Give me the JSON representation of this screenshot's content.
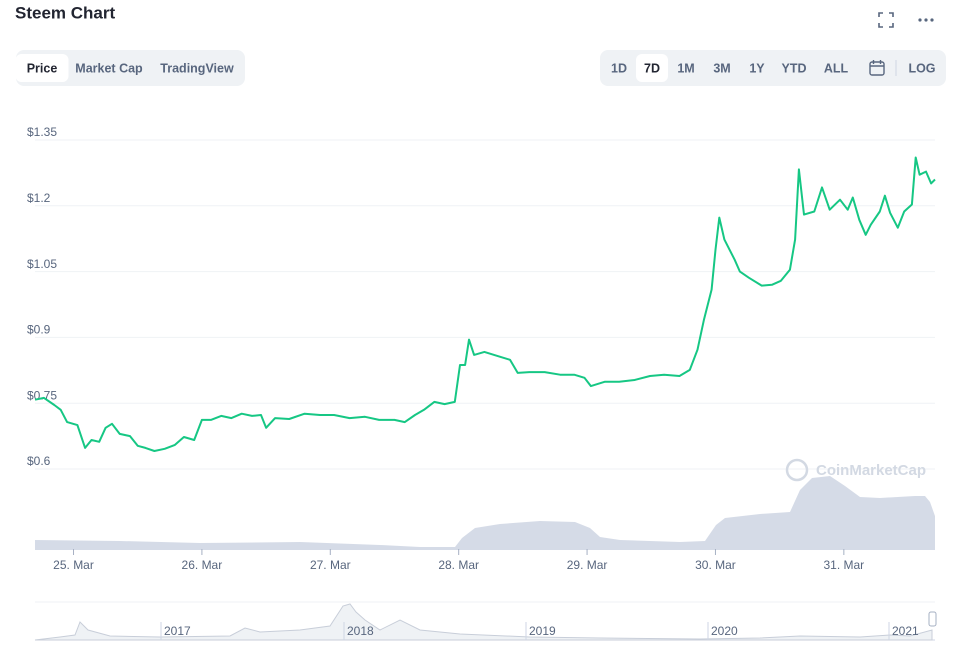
{
  "chart_data": {
    "type": "line",
    "title": "Steem Chart",
    "tabs": [
      "Price",
      "Market Cap",
      "TradingView"
    ],
    "active_tab": "Price",
    "ranges": [
      "1D",
      "7D",
      "1M",
      "3M",
      "1Y",
      "YTD",
      "ALL"
    ],
    "active_range": "7D",
    "log_button": "LOG",
    "watermark": "CoinMarketCap",
    "color": "#16c784",
    "grid": true,
    "ylim": [
      0.6,
      1.35
    ],
    "yticks": [
      {
        "value": 0.6,
        "label": "$0.6"
      },
      {
        "value": 0.75,
        "label": "$0.75"
      },
      {
        "value": 0.9,
        "label": "$0.9"
      },
      {
        "value": 1.05,
        "label": "$1.05"
      },
      {
        "value": 1.2,
        "label": "$1.2"
      },
      {
        "value": 1.35,
        "label": "$1.35"
      }
    ],
    "xlim": [
      24.7,
      31.71
    ],
    "xticks": [
      {
        "value": 25,
        "label": "25. Mar"
      },
      {
        "value": 26,
        "label": "26. Mar"
      },
      {
        "value": 27,
        "label": "27. Mar"
      },
      {
        "value": 28,
        "label": "28. Mar"
      },
      {
        "value": 29,
        "label": "29. Mar"
      },
      {
        "value": 30,
        "label": "30. Mar"
      },
      {
        "value": 31,
        "label": "31. Mar"
      }
    ],
    "x": [
      24.7,
      24.77,
      24.85,
      24.9,
      24.95,
      25.03,
      25.09,
      25.14,
      25.2,
      25.25,
      25.3,
      25.36,
      25.44,
      25.5,
      25.56,
      25.63,
      25.71,
      25.79,
      25.86,
      25.94,
      26.0,
      26.07,
      26.15,
      26.23,
      26.31,
      26.39,
      26.46,
      26.5,
      26.57,
      26.68,
      26.8,
      26.92,
      27.03,
      27.15,
      27.27,
      27.38,
      27.5,
      27.58,
      27.66,
      27.73,
      27.81,
      27.89,
      27.97,
      28.01,
      28.05,
      28.08,
      28.12,
      28.2,
      28.32,
      28.4,
      28.46,
      28.55,
      28.67,
      28.79,
      28.9,
      28.98,
      29.03,
      29.14,
      29.25,
      29.37,
      29.49,
      29.6,
      29.72,
      29.8,
      29.86,
      29.91,
      29.97,
      30.0,
      30.03,
      30.07,
      30.15,
      30.19,
      30.26,
      30.36,
      30.44,
      30.51,
      30.58,
      30.62,
      30.65,
      30.69,
      30.77,
      30.83,
      30.89,
      30.97,
      31.03,
      31.07,
      31.12,
      31.17,
      31.21,
      31.28,
      31.32,
      31.36,
      31.42,
      31.47,
      31.53,
      31.56,
      31.59,
      31.64,
      31.68,
      31.71
    ],
    "values": [
      0.758,
      0.762,
      0.746,
      0.735,
      0.707,
      0.7,
      0.648,
      0.666,
      0.662,
      0.694,
      0.703,
      0.68,
      0.675,
      0.653,
      0.648,
      0.641,
      0.646,
      0.655,
      0.673,
      0.666,
      0.712,
      0.712,
      0.721,
      0.716,
      0.726,
      0.721,
      0.723,
      0.694,
      0.716,
      0.714,
      0.726,
      0.723,
      0.723,
      0.716,
      0.719,
      0.712,
      0.712,
      0.707,
      0.723,
      0.735,
      0.753,
      0.748,
      0.753,
      0.837,
      0.837,
      0.895,
      0.86,
      0.867,
      0.856,
      0.849,
      0.819,
      0.821,
      0.821,
      0.815,
      0.815,
      0.808,
      0.789,
      0.799,
      0.799,
      0.803,
      0.812,
      0.815,
      0.812,
      0.826,
      0.872,
      0.94,
      1.009,
      1.1,
      1.173,
      1.123,
      1.077,
      1.05,
      1.036,
      1.018,
      1.02,
      1.029,
      1.054,
      1.123,
      1.283,
      1.18,
      1.187,
      1.242,
      1.191,
      1.214,
      1.191,
      1.219,
      1.168,
      1.134,
      1.157,
      1.187,
      1.223,
      1.184,
      1.15,
      1.187,
      1.203,
      1.31,
      1.271,
      1.278,
      1.251,
      1.26
    ],
    "navigator_labels": [
      "2017",
      "2018",
      "2019",
      "2020",
      "2021"
    ]
  }
}
